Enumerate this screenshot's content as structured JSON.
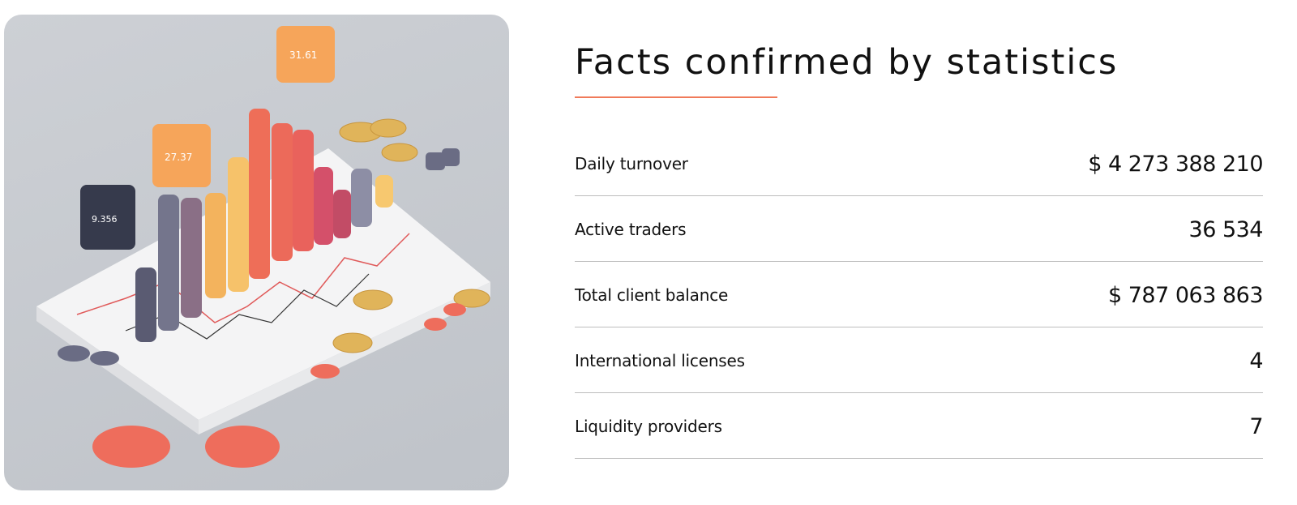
{
  "hero": {
    "image": "isometric financial chart illustration with bars, coins and tokens",
    "panel_labels": [
      "31.61",
      "27.37",
      "9.356"
    ]
  },
  "section": {
    "title": "Facts confirmed by statistics"
  },
  "colors": {
    "accent": "#f07a5a",
    "divider": "#bdbdbd",
    "text": "#111111"
  },
  "stats": [
    {
      "label": "Daily turnover",
      "value": "$ 4 273 388 210"
    },
    {
      "label": "Active traders",
      "value": "36 534"
    },
    {
      "label": "Total client balance",
      "value": "$ 787 063 863"
    },
    {
      "label": "International licenses",
      "value": "4"
    },
    {
      "label": "Liquidity providers",
      "value": "7"
    }
  ]
}
